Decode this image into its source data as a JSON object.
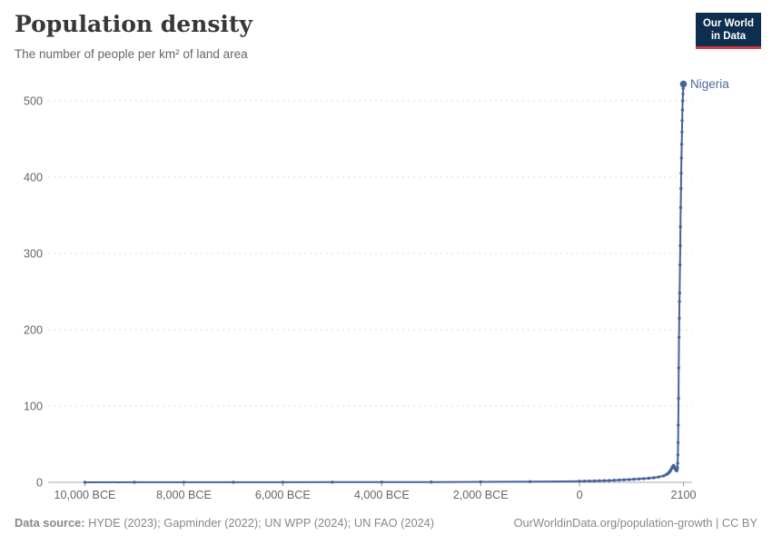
{
  "header": {
    "title": "Population density",
    "subtitle": "The number of people per km² of land area"
  },
  "logo": {
    "line1": "Our World",
    "line2": "in Data",
    "bg_color": "#0d2e4e",
    "accent_color": "#d13c3c"
  },
  "footer": {
    "source_label": "Data source:",
    "source_text": "HYDE (2023); Gapminder (2022); UN WPP (2024); UN FAO (2024)",
    "credit": "OurWorldinData.org/population-growth | CC BY"
  },
  "chart_data": {
    "type": "line",
    "title": "Population density",
    "subtitle": "The number of people per km² of land area",
    "xlabel": "",
    "ylabel": "",
    "unit": "people per km² of land area",
    "grid": true,
    "legend_position": "end-of-line-label",
    "xlim": [
      -10000,
      2100
    ],
    "ylim": [
      0,
      540
    ],
    "yticks": [
      {
        "value": 0,
        "label": "0"
      },
      {
        "value": 100,
        "label": "100"
      },
      {
        "value": 200,
        "label": "200"
      },
      {
        "value": 300,
        "label": "300"
      },
      {
        "value": 400,
        "label": "400"
      },
      {
        "value": 500,
        "label": "500"
      }
    ],
    "xticks": [
      {
        "value": -10000,
        "label": "10,000 BCE"
      },
      {
        "value": -8000,
        "label": "8,000 BCE"
      },
      {
        "value": -6000,
        "label": "6,000 BCE"
      },
      {
        "value": -4000,
        "label": "4,000 BCE"
      },
      {
        "value": -2000,
        "label": "2,000 BCE"
      },
      {
        "value": 0,
        "label": "0"
      },
      {
        "value": 2100,
        "label": "2100"
      }
    ],
    "series": [
      {
        "name": "Nigeria",
        "color": "#45639d",
        "label_color": "#4c6a9c",
        "points": [
          [
            -10000,
            0.05
          ],
          [
            -9000,
            0.06
          ],
          [
            -8000,
            0.08
          ],
          [
            -7000,
            0.1
          ],
          [
            -6000,
            0.14
          ],
          [
            -5000,
            0.19
          ],
          [
            -4000,
            0.27
          ],
          [
            -3000,
            0.4
          ],
          [
            -2000,
            0.6
          ],
          [
            -1000,
            0.9
          ],
          [
            0,
            1.4
          ],
          [
            100,
            1.5
          ],
          [
            200,
            1.7
          ],
          [
            300,
            1.8
          ],
          [
            400,
            2.0
          ],
          [
            500,
            2.2
          ],
          [
            600,
            2.4
          ],
          [
            700,
            2.7
          ],
          [
            800,
            3.0
          ],
          [
            900,
            3.3
          ],
          [
            1000,
            3.6
          ],
          [
            1100,
            4.0
          ],
          [
            1200,
            4.4
          ],
          [
            1300,
            4.9
          ],
          [
            1400,
            5.4
          ],
          [
            1500,
            6.0
          ],
          [
            1600,
            7.0
          ],
          [
            1700,
            8.5
          ],
          [
            1750,
            10
          ],
          [
            1775,
            11
          ],
          [
            1800,
            12.5
          ],
          [
            1815,
            13.5
          ],
          [
            1830,
            14.8
          ],
          [
            1845,
            16.2
          ],
          [
            1860,
            17.8
          ],
          [
            1870,
            19
          ],
          [
            1880,
            20.3
          ],
          [
            1890,
            21.3
          ],
          [
            1900,
            22
          ],
          [
            1910,
            21.2
          ],
          [
            1920,
            19.8
          ],
          [
            1930,
            18.3
          ],
          [
            1940,
            17
          ],
          [
            1950,
            16
          ],
          [
            1958,
            15.4
          ],
          [
            1965,
            15.2
          ],
          [
            1972,
            16.2
          ],
          [
            1978,
            19
          ],
          [
            1983,
            25
          ],
          [
            1988,
            36
          ],
          [
            1992,
            52
          ],
          [
            1996,
            75
          ],
          [
            2000,
            110
          ],
          [
            2005,
            150
          ],
          [
            2010,
            190
          ],
          [
            2015,
            215
          ],
          [
            2020,
            237
          ],
          [
            2023,
            248
          ],
          [
            2030,
            285
          ],
          [
            2035,
            310
          ],
          [
            2040,
            335
          ],
          [
            2045,
            360
          ],
          [
            2050,
            385
          ],
          [
            2055,
            405
          ],
          [
            2060,
            425
          ],
          [
            2065,
            443
          ],
          [
            2070,
            459
          ],
          [
            2075,
            474
          ],
          [
            2080,
            488
          ],
          [
            2085,
            500
          ],
          [
            2090,
            509
          ],
          [
            2095,
            516
          ],
          [
            2100,
            522
          ]
        ]
      }
    ]
  }
}
